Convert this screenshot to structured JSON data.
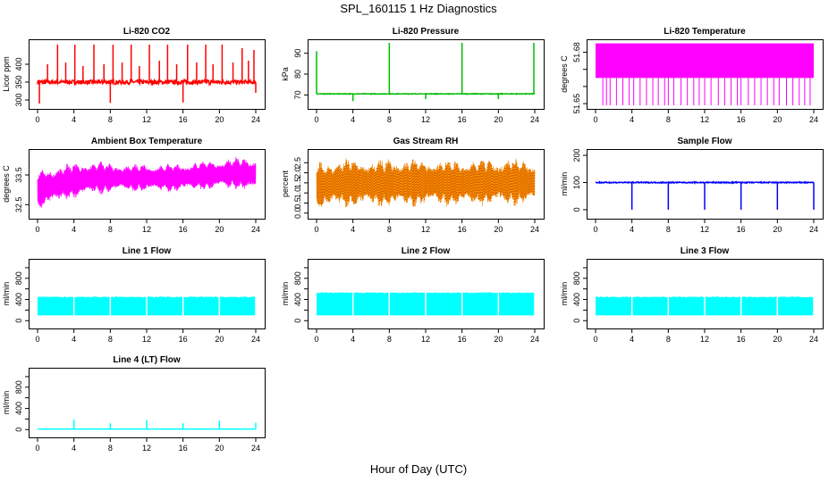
{
  "figure": {
    "title": "SPL_160115  1 Hz Diagnostics",
    "xlabel": "Hour of Day (UTC)"
  },
  "chart_data": [
    {
      "type": "line",
      "title": "Li-820 CO2",
      "ylabel": "Licor ppm",
      "color": "#ff0000",
      "xlim": [
        0,
        24
      ],
      "xticks": [
        "0",
        "4",
        "8",
        "12",
        "16",
        "20",
        "24"
      ],
      "ylim": [
        285,
        460
      ],
      "yticks": [
        300,
        350,
        400
      ],
      "ytick_labels": [
        "300",
        "350",
        "400"
      ],
      "baseline": 350,
      "noise": 6,
      "spikes": [
        {
          "x": 0.2,
          "y": 290
        },
        {
          "x": 1.1,
          "y": 400
        },
        {
          "x": 2.2,
          "y": 455
        },
        {
          "x": 3.1,
          "y": 405
        },
        {
          "x": 4.1,
          "y": 455
        },
        {
          "x": 5.0,
          "y": 395
        },
        {
          "x": 6.2,
          "y": 455
        },
        {
          "x": 7.3,
          "y": 400
        },
        {
          "x": 8.0,
          "y": 292
        },
        {
          "x": 8.3,
          "y": 455
        },
        {
          "x": 9.3,
          "y": 405
        },
        {
          "x": 10.3,
          "y": 455
        },
        {
          "x": 11.2,
          "y": 395
        },
        {
          "x": 12.3,
          "y": 455
        },
        {
          "x": 13.4,
          "y": 410
        },
        {
          "x": 14.3,
          "y": 455
        },
        {
          "x": 15.3,
          "y": 400
        },
        {
          "x": 16.0,
          "y": 293
        },
        {
          "x": 16.5,
          "y": 455
        },
        {
          "x": 17.5,
          "y": 405
        },
        {
          "x": 18.5,
          "y": 455
        },
        {
          "x": 19.3,
          "y": 400
        },
        {
          "x": 20.3,
          "y": 455
        },
        {
          "x": 21.5,
          "y": 405
        },
        {
          "x": 22.5,
          "y": 445
        },
        {
          "x": 23.2,
          "y": 410
        },
        {
          "x": 23.8,
          "y": 440
        },
        {
          "x": 24.0,
          "y": 320
        }
      ]
    },
    {
      "type": "line",
      "title": "Li-820 Pressure",
      "ylabel": "kPa",
      "color": "#00bb00",
      "xlim": [
        0,
        24
      ],
      "xticks": [
        "0",
        "4",
        "8",
        "12",
        "16",
        "20",
        "24"
      ],
      "ylim": [
        65,
        95
      ],
      "yticks": [
        70,
        80,
        90
      ],
      "ytick_labels": [
        "70",
        "80",
        "90"
      ],
      "baseline": 70.5,
      "noise": 0.15,
      "spikes": [
        {
          "x": 0.0,
          "y": 91
        },
        {
          "x": 4.0,
          "y": 67
        },
        {
          "x": 8.0,
          "y": 95
        },
        {
          "x": 12.0,
          "y": 68
        },
        {
          "x": 16.0,
          "y": 95
        },
        {
          "x": 20.0,
          "y": 68
        },
        {
          "x": 23.9,
          "y": 95
        }
      ]
    },
    {
      "type": "line",
      "title": "Li-820 Temperature",
      "ylabel": "degrees C",
      "color": "#ff00ff",
      "xlim": [
        0,
        24
      ],
      "xticks": [
        "0",
        "4",
        "8",
        "12",
        "16",
        "20",
        "24"
      ],
      "ylim": [
        51.649,
        51.6855
      ],
      "yticks": [
        51.65,
        51.66,
        51.67,
        51.68
      ],
      "ytick_labels": [
        "51.65",
        "",
        "",
        "51.68"
      ],
      "band": [
        51.665,
        51.6852
      ],
      "drops": [
        0.8,
        1.2,
        1.6,
        2.3,
        3.0,
        3.7,
        4.2,
        4.9,
        5.6,
        6.3,
        6.9,
        7.6,
        8.0,
        8.6,
        9.4,
        10.1,
        10.8,
        11.4,
        12.0,
        12.7,
        13.5,
        14.2,
        14.9,
        15.6,
        16.0,
        16.8,
        17.5,
        18.2,
        18.9,
        19.6,
        20.2,
        21.0,
        21.7,
        22.4,
        23.0,
        23.6
      ],
      "drop_min": 51.649
    },
    {
      "type": "line",
      "title": "Ambient Box Temperature",
      "ylabel": "degrees C",
      "color": "#ff00ff",
      "xlim": [
        0,
        24
      ],
      "xticks": [
        "0",
        "4",
        "8",
        "12",
        "16",
        "20",
        "24"
      ],
      "ylim": [
        32.15,
        34.25
      ],
      "yticks": [
        32.5,
        33.5
      ],
      "ytick_labels": [
        "32.5",
        "33.5"
      ],
      "band_low": [
        32.3,
        32.6,
        32.8,
        32.9,
        32.9,
        32.9,
        32.95,
        33.0,
        32.9
      ],
      "band_high": [
        33.7,
        33.9,
        34.0,
        33.9,
        33.9,
        33.9,
        34.0,
        34.1,
        34.15
      ]
    },
    {
      "type": "line",
      "title": "Gas Stream RH",
      "ylabel": "percent",
      "color": "#ffa500",
      "edge_color": "#bb2200",
      "xlim": [
        0,
        24
      ],
      "xticks": [
        "0",
        "4",
        "8",
        "12",
        "16",
        "20",
        "24"
      ],
      "ylim": [
        -0.1,
        3.0
      ],
      "yticks": [
        0.0,
        0.5,
        1.0,
        1.5,
        2.0,
        2.5
      ],
      "ytick_labels": [
        "0.0",
        "0.5",
        "1.0",
        "1.5",
        "2.0",
        "2.5"
      ],
      "band_low": [
        0.1,
        0.2,
        0.25,
        0.2,
        0.3,
        0.25,
        0.3,
        0.3,
        0.35
      ],
      "band_high": [
        2.6,
        2.8,
        2.7,
        2.8,
        2.75,
        2.7,
        2.75,
        2.8,
        2.7
      ]
    },
    {
      "type": "line",
      "title": "Sample Flow",
      "ylabel": "ml/min",
      "color": "#0000ff",
      "xlim": [
        0,
        24
      ],
      "xticks": [
        "0",
        "4",
        "8",
        "12",
        "16",
        "20",
        "24"
      ],
      "ylim": [
        -20,
        210
      ],
      "yticks": [
        0,
        100,
        200
      ],
      "ytick_labels": [
        "0",
        "100",
        "200"
      ],
      "baseline": 100,
      "noise": 2,
      "spikes": [
        {
          "x": 4.0,
          "y": 0
        },
        {
          "x": 8.0,
          "y": 0
        },
        {
          "x": 12.0,
          "y": 0
        },
        {
          "x": 16.0,
          "y": 0
        },
        {
          "x": 20.0,
          "y": 0
        },
        {
          "x": 24.0,
          "y": 0
        }
      ]
    },
    {
      "type": "line",
      "title": "Line 1 Flow",
      "ylabel": "ml/min",
      "color": "#00ffff",
      "xlim": [
        0,
        24
      ],
      "xticks": [
        "0",
        "4",
        "8",
        "12",
        "16",
        "20",
        "24"
      ],
      "ylim": [
        -80,
        1100
      ],
      "yticks": [
        0,
        200,
        400,
        600,
        800,
        1000
      ],
      "ytick_labels": [
        "0",
        "",
        "400",
        "",
        "800",
        ""
      ],
      "band": [
        100,
        440
      ],
      "gaps": [
        4.0,
        8.0,
        12.0,
        16.0,
        20.0,
        24.0
      ]
    },
    {
      "type": "line",
      "title": "Line 2 Flow",
      "ylabel": "ml/min",
      "color": "#00ffff",
      "xlim": [
        0,
        24
      ],
      "xticks": [
        "0",
        "4",
        "8",
        "12",
        "16",
        "20",
        "24"
      ],
      "ylim": [
        -80,
        1100
      ],
      "yticks": [
        0,
        200,
        400,
        600,
        800,
        1000
      ],
      "ytick_labels": [
        "0",
        "",
        "400",
        "",
        "800",
        ""
      ],
      "band": [
        100,
        520
      ],
      "gaps": [
        4.0,
        8.0,
        12.0,
        16.0,
        20.0,
        24.0
      ]
    },
    {
      "type": "line",
      "title": "Line 3 Flow",
      "ylabel": "ml/min",
      "color": "#00ffff",
      "xlim": [
        0,
        24
      ],
      "xticks": [
        "0",
        "4",
        "8",
        "12",
        "16",
        "20",
        "24"
      ],
      "ylim": [
        -80,
        1100
      ],
      "yticks": [
        0,
        200,
        400,
        600,
        800,
        1000
      ],
      "ytick_labels": [
        "0",
        "",
        "400",
        "",
        "800",
        ""
      ],
      "band": [
        100,
        440
      ],
      "gaps": [
        4.0,
        8.0,
        12.0,
        16.0,
        20.0,
        24.0
      ]
    },
    {
      "type": "line",
      "title": "Line 4 (LT) Flow",
      "ylabel": "ml/min",
      "color": "#00ffff",
      "xlim": [
        0,
        24
      ],
      "xticks": [
        "0",
        "4",
        "8",
        "12",
        "16",
        "20",
        "24"
      ],
      "ylim": [
        -80,
        1100
      ],
      "yticks": [
        0,
        200,
        400,
        600,
        800,
        1000
      ],
      "ytick_labels": [
        "0",
        "",
        "400",
        "",
        "800",
        ""
      ],
      "baseline": 10,
      "noise": 3,
      "spikes": [
        {
          "x": 4.0,
          "y": 190
        },
        {
          "x": 8.0,
          "y": 120
        },
        {
          "x": 12.0,
          "y": 180
        },
        {
          "x": 16.0,
          "y": 120
        },
        {
          "x": 20.0,
          "y": 170
        },
        {
          "x": 24.0,
          "y": 130
        }
      ]
    }
  ]
}
